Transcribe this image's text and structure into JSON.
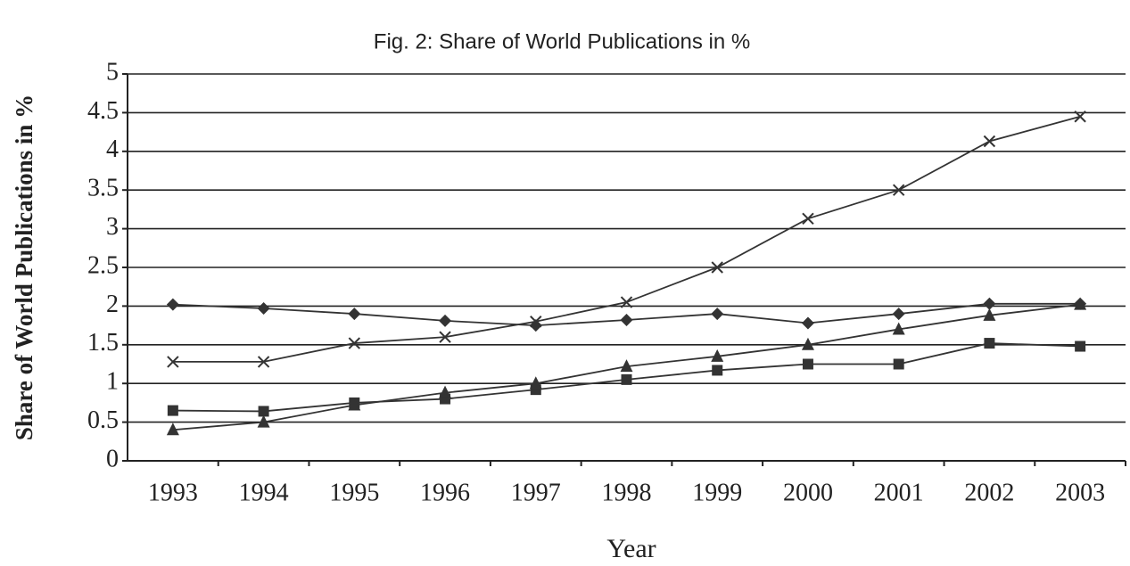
{
  "chart_data": {
    "type": "line",
    "title": "Fig. 2: Share of World Publications in %",
    "y_label": "Share of World Publications in %",
    "x_label": "Year",
    "categories": [
      "1993",
      "1994",
      "1995",
      "1996",
      "1997",
      "1998",
      "1999",
      "2000",
      "2001",
      "2002",
      "2003"
    ],
    "series": [
      {
        "marker": "diamond",
        "color": "#333333",
        "values": [
          2.02,
          1.97,
          1.9,
          1.81,
          1.75,
          1.82,
          1.9,
          1.78,
          1.9,
          2.03,
          2.03
        ]
      },
      {
        "marker": "x",
        "color": "#333333",
        "values": [
          1.28,
          1.28,
          1.52,
          1.6,
          1.8,
          2.05,
          2.5,
          3.13,
          3.5,
          4.13,
          4.45
        ]
      },
      {
        "marker": "square",
        "color": "#333333",
        "values": [
          0.65,
          0.64,
          0.75,
          0.8,
          0.92,
          1.05,
          1.17,
          1.25,
          1.25,
          1.52,
          1.48
        ]
      },
      {
        "marker": "triangle",
        "color": "#333333",
        "values": [
          0.4,
          0.5,
          0.72,
          0.88,
          1.0,
          1.22,
          1.35,
          1.5,
          1.7,
          1.88,
          2.02
        ]
      }
    ],
    "ylim": [
      0,
      5
    ],
    "yticks": [
      0,
      0.5,
      1,
      1.5,
      2,
      2.5,
      3,
      3.5,
      4,
      4.5,
      5
    ],
    "grid": true
  }
}
